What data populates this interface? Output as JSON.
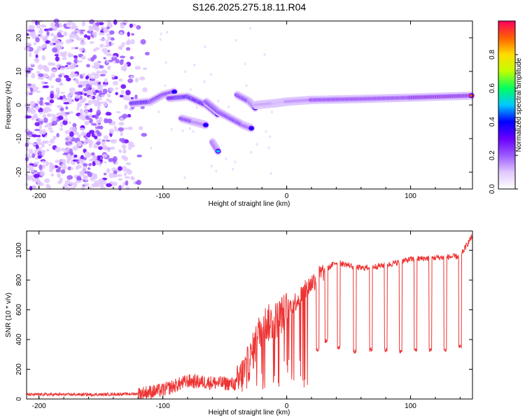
{
  "title": "S126.2025.275.18.11.R04",
  "chart_data": [
    {
      "type": "heatmap",
      "name": "spectrogram",
      "xlabel": "Height of straight line (km)",
      "ylabel": "Frequency (Hz)",
      "xlim": [
        -210,
        150
      ],
      "ylim": [
        -25,
        25
      ],
      "xticks": [
        -200,
        -100,
        0,
        100
      ],
      "yticks": [
        20,
        10,
        0,
        -10,
        -20
      ],
      "colorbar": {
        "label": "Normalized spectral amplitude",
        "range": [
          0,
          1
        ],
        "ticks": [
          0.0,
          0.2,
          0.4,
          0.6,
          0.8
        ],
        "colors": [
          "#ffffff",
          "#e0c8ff",
          "#9b59ff",
          "#6a00ff",
          "#0000ff",
          "#00c8ff",
          "#00ff60",
          "#c0ff00",
          "#ffdd00",
          "#ff6000",
          "#ff0060"
        ]
      },
      "ridge_segments": [
        {
          "x": [
            -125,
            -110,
            -100,
            -90
          ],
          "y": [
            0.5,
            1,
            3,
            4
          ]
        },
        {
          "x": [
            -95,
            -80,
            -65,
            -55
          ],
          "y": [
            2,
            2.5,
            0,
            -3
          ]
        },
        {
          "x": [
            -85,
            -75,
            -70,
            -65
          ],
          "y": [
            -4,
            -5,
            -5.5,
            -6
          ]
        },
        {
          "x": [
            -65,
            -55,
            -45,
            -35,
            -28
          ],
          "y": [
            1,
            -2,
            -4,
            -6,
            -7
          ]
        },
        {
          "x": [
            -60,
            -55
          ],
          "y": [
            -11,
            -14
          ]
        },
        {
          "x": [
            -40,
            -30,
            -25
          ],
          "y": [
            3,
            1,
            -1
          ]
        },
        {
          "x": [
            -25,
            -10,
            0,
            20,
            60,
            100,
            150
          ],
          "y": [
            0,
            0.5,
            1,
            1.5,
            1.8,
            2.2,
            2.8
          ]
        }
      ],
      "noise_region": {
        "x": [
          -210,
          -110
        ],
        "y": [
          -25,
          25
        ]
      }
    },
    {
      "type": "line",
      "name": "snr",
      "xlabel": "Height of straight line (km)",
      "ylabel": "SNR (10 * v/v)",
      "xlim": [
        -210,
        150
      ],
      "ylim": [
        0,
        1130
      ],
      "xticks": [
        -200,
        -100,
        0,
        100
      ],
      "yticks": [
        0,
        200,
        400,
        600,
        800,
        1000
      ],
      "color": "#ee3333",
      "envelope": {
        "x": [
          -210,
          -150,
          -120,
          -100,
          -80,
          -60,
          -40,
          -30,
          -20,
          -10,
          0,
          10,
          20,
          30,
          40,
          60,
          80,
          100,
          120,
          140,
          150
        ],
        "y": [
          30,
          30,
          35,
          60,
          120,
          110,
          100,
          250,
          500,
          520,
          600,
          680,
          780,
          860,
          920,
          880,
          900,
          940,
          950,
          960,
          1100
        ]
      },
      "dropouts": [
        {
          "x": 25,
          "y": 330
        },
        {
          "x": 32,
          "y": 390
        },
        {
          "x": 42,
          "y": 350
        },
        {
          "x": 55,
          "y": 320
        },
        {
          "x": 68,
          "y": 330
        },
        {
          "x": 80,
          "y": 330
        },
        {
          "x": 92,
          "y": 320
        },
        {
          "x": 104,
          "y": 330
        },
        {
          "x": 116,
          "y": 330
        },
        {
          "x": 128,
          "y": 330
        },
        {
          "x": 140,
          "y": 350
        }
      ]
    }
  ]
}
